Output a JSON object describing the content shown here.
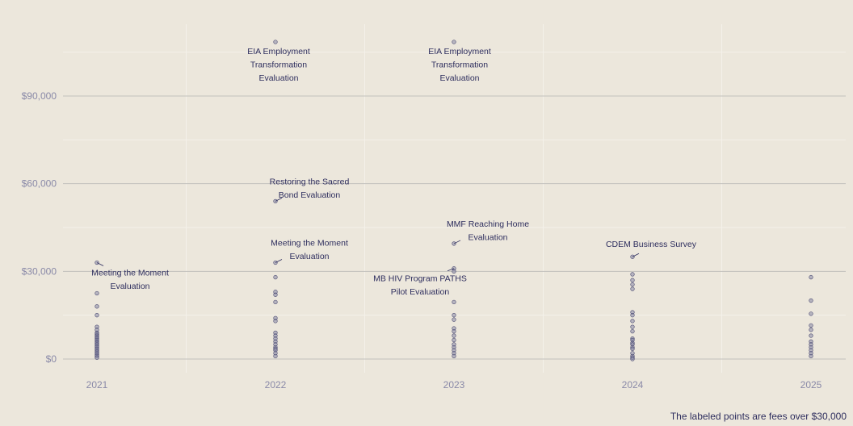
{
  "chart_data": {
    "type": "scatter",
    "title": "",
    "xlabel": "",
    "ylabel": "",
    "x_categories": [
      "2021",
      "2022",
      "2023",
      "2024",
      "2025"
    ],
    "ylim": [
      -3500,
      113000
    ],
    "y_ticks": [
      0,
      30000,
      60000,
      90000
    ],
    "y_tick_labels": [
      "$0",
      "$30,000",
      "$60,000",
      "$90,000"
    ],
    "grid": true,
    "colors": {
      "background": "#ece7dc",
      "point_fill": "#8a8aa8",
      "point_stroke": "#3a3a66",
      "text": "#2e2e5e",
      "grid_major": "#c2c0bc",
      "grid_minor": "#f4f1ea"
    },
    "points": {
      "2021": [
        33000,
        22500,
        18000,
        15000,
        11000,
        10000,
        9000,
        8500,
        8000,
        7500,
        7000,
        6500,
        6000,
        5500,
        5000,
        4500,
        4000,
        3500,
        3000,
        2500,
        2000,
        1500,
        1000,
        500
      ],
      "2022": [
        108500,
        54000,
        33000,
        28000,
        23000,
        22000,
        19500,
        14000,
        13000,
        9000,
        8000,
        7000,
        6000,
        5000,
        4000,
        3500,
        3000,
        2000,
        1000
      ],
      "2023": [
        108500,
        39500,
        31000,
        30000,
        19500,
        15000,
        13500,
        10500,
        9500,
        8000,
        6500,
        5000,
        4000,
        3000,
        2000,
        1000
      ],
      "2024": [
        35000,
        29000,
        27000,
        25500,
        24000,
        16000,
        15000,
        13000,
        11000,
        9500,
        7000,
        6500,
        5500,
        5000,
        4000,
        3500,
        2000,
        1000,
        500,
        0
      ],
      "2025": [
        28000,
        20000,
        15500,
        11500,
        10000,
        8000,
        6000,
        5000,
        4000,
        3000,
        2000,
        1000
      ]
    },
    "annotations": [
      {
        "x": "2021",
        "y": 33000,
        "lines": [
          "Meeting the Moment",
          "Evaluation"
        ]
      },
      {
        "x": "2022",
        "y": 108500,
        "lines": [
          "EIA Employment",
          "Transformation",
          "Evaluation"
        ]
      },
      {
        "x": "2022",
        "y": 54000,
        "lines": [
          "Restoring the Sacred",
          "Bond Evaluation"
        ]
      },
      {
        "x": "2022",
        "y": 33000,
        "lines": [
          "Meeting the Moment",
          "Evaluation"
        ]
      },
      {
        "x": "2023",
        "y": 108500,
        "lines": [
          "EIA Employment",
          "Transformation",
          "Evaluation"
        ]
      },
      {
        "x": "2023",
        "y": 39500,
        "lines": [
          "MMF Reaching Home",
          "Evaluation"
        ]
      },
      {
        "x": "2023",
        "y": 31000,
        "lines": [
          "MB HIV Program PATHS",
          "Pilot Evaluation"
        ]
      },
      {
        "x": "2024",
        "y": 35000,
        "lines": [
          "CDEM Business Survey"
        ]
      }
    ],
    "caption": "The labeled points are fees over $30,000"
  }
}
